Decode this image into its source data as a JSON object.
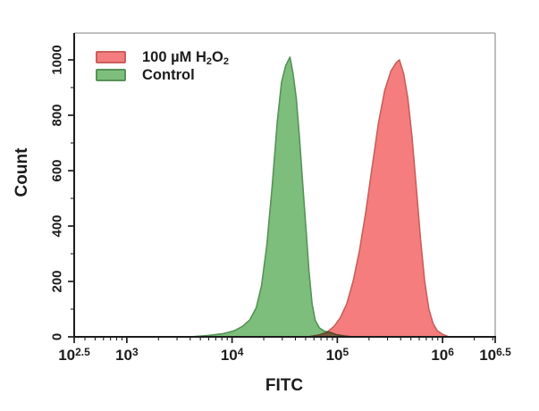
{
  "chart_data": {
    "type": "area",
    "subtype": "flow-cytometry-histogram",
    "title": "",
    "xlabel": "FITC",
    "ylabel": "Count",
    "x_scale": "log10",
    "x_range_log": [
      2.5,
      6.5
    ],
    "y_range": [
      0,
      1000
    ],
    "grid": false,
    "colors": {
      "axis": "#1c1c1c",
      "frame": "#9a9a9a",
      "text": "#1c1c1c",
      "background": "#ffffff"
    },
    "x_ticks": [
      {
        "value": 2.5,
        "label_base": "10",
        "label_exp": "2.5"
      },
      {
        "value": 3,
        "label_base": "10",
        "label_exp": "3"
      },
      {
        "value": 4,
        "label_base": "10",
        "label_exp": "4"
      },
      {
        "value": 5,
        "label_base": "10",
        "label_exp": "5"
      },
      {
        "value": 6,
        "label_base": "10",
        "label_exp": "6"
      },
      {
        "value": 6.5,
        "label_base": "10",
        "label_exp": "6.5"
      }
    ],
    "y_ticks": [
      {
        "value": 0,
        "label": "0"
      },
      {
        "value": 200,
        "label": "200"
      },
      {
        "value": 400,
        "label": "400"
      },
      {
        "value": 600,
        "label": "600"
      },
      {
        "value": 800,
        "label": "800"
      },
      {
        "value": 1000,
        "label": "1000"
      }
    ],
    "y_minor_values": [
      100,
      300,
      500,
      700,
      900
    ],
    "x_minor": "log-subdecades-2-9",
    "legend": {
      "position": "top-left",
      "items": [
        {
          "series": "h2o2",
          "label_text": "100 µM H2O2",
          "label_parts": [
            {
              "t": "100 µM H"
            },
            {
              "sub": "2"
            },
            {
              "t": "O"
            },
            {
              "sub": "2"
            }
          ]
        },
        {
          "series": "control",
          "label_text": "Control",
          "label_parts": [
            {
              "t": "Control"
            }
          ]
        }
      ]
    },
    "series": [
      {
        "key": "control",
        "name": "Control",
        "fill": "#7DBE7D",
        "stroke": "#579257",
        "peak": {
          "x_log": 4.55,
          "count": 1010
        },
        "points": [
          [
            3.6,
            0
          ],
          [
            3.78,
            5
          ],
          [
            3.92,
            12
          ],
          [
            4.02,
            22
          ],
          [
            4.1,
            38
          ],
          [
            4.17,
            62
          ],
          [
            4.23,
            105
          ],
          [
            4.28,
            185
          ],
          [
            4.33,
            330
          ],
          [
            4.38,
            540
          ],
          [
            4.43,
            780
          ],
          [
            4.47,
            920
          ],
          [
            4.51,
            980
          ],
          [
            4.55,
            1010
          ],
          [
            4.58,
            950
          ],
          [
            4.61,
            860
          ],
          [
            4.64,
            720
          ],
          [
            4.67,
            560
          ],
          [
            4.7,
            400
          ],
          [
            4.73,
            240
          ],
          [
            4.76,
            120
          ],
          [
            4.79,
            60
          ],
          [
            4.83,
            32
          ],
          [
            4.88,
            20
          ],
          [
            4.93,
            16
          ],
          [
            4.99,
            8
          ],
          [
            5.07,
            3
          ],
          [
            5.15,
            0
          ]
        ]
      },
      {
        "key": "h2o2",
        "name": "100 µM H2O2",
        "fill": "#F57D7D",
        "stroke": "#C95F5C",
        "blend": "multiply",
        "peak": {
          "x_log": 5.59,
          "count": 1000
        },
        "points": [
          [
            4.72,
            0
          ],
          [
            4.82,
            6
          ],
          [
            4.9,
            16
          ],
          [
            4.97,
            38
          ],
          [
            5.03,
            70
          ],
          [
            5.09,
            120
          ],
          [
            5.15,
            200
          ],
          [
            5.21,
            310
          ],
          [
            5.27,
            450
          ],
          [
            5.33,
            610
          ],
          [
            5.39,
            770
          ],
          [
            5.45,
            890
          ],
          [
            5.51,
            960
          ],
          [
            5.56,
            990
          ],
          [
            5.59,
            1000
          ],
          [
            5.63,
            950
          ],
          [
            5.67,
            860
          ],
          [
            5.71,
            720
          ],
          [
            5.75,
            540
          ],
          [
            5.79,
            355
          ],
          [
            5.83,
            200
          ],
          [
            5.87,
            100
          ],
          [
            5.91,
            48
          ],
          [
            5.95,
            22
          ],
          [
            6.0,
            9
          ],
          [
            6.06,
            0
          ]
        ]
      }
    ]
  }
}
